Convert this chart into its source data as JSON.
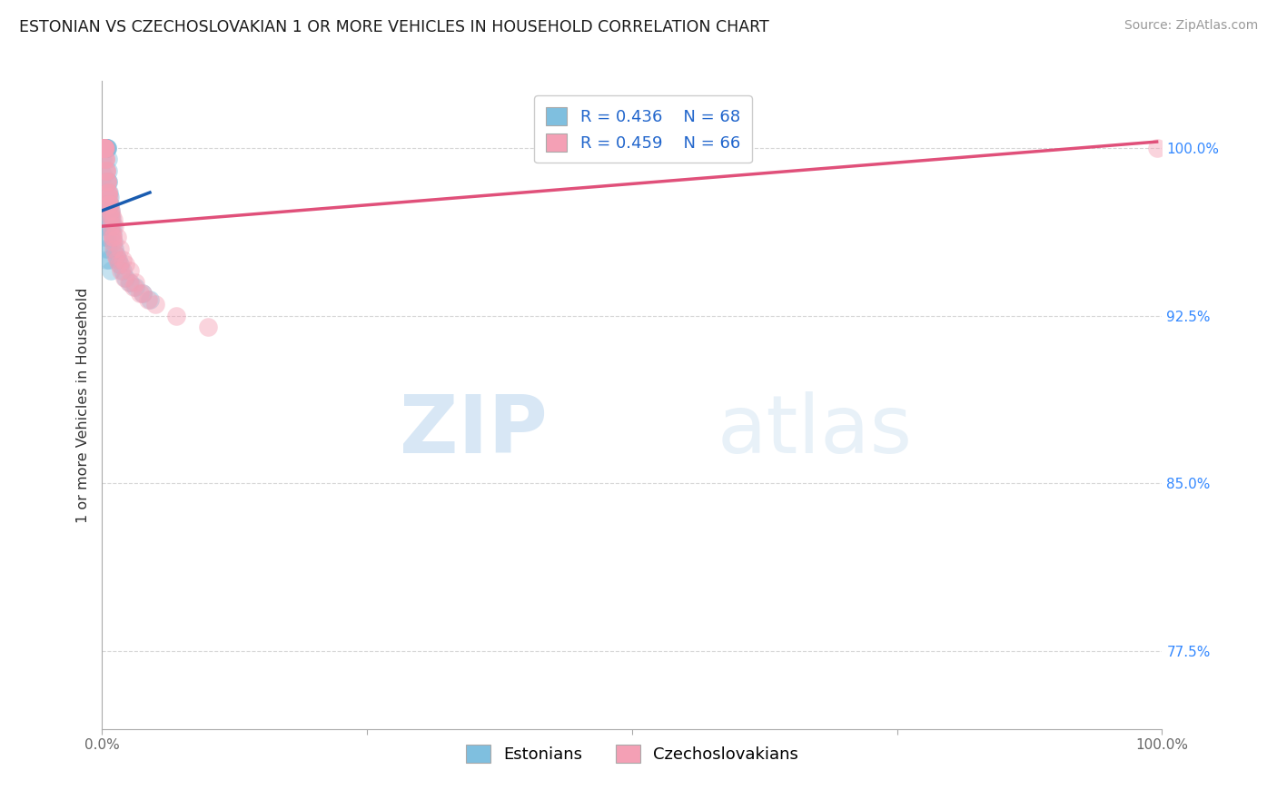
{
  "title": "ESTONIAN VS CZECHOSLOVAKIAN 1 OR MORE VEHICLES IN HOUSEHOLD CORRELATION CHART",
  "source": "Source: ZipAtlas.com",
  "ylabel": "1 or more Vehicles in Household",
  "xlim": [
    0.0,
    100.0
  ],
  "ylim": [
    74.0,
    103.0
  ],
  "yticks": [
    77.5,
    85.0,
    92.5,
    100.0
  ],
  "ytick_labels": [
    "77.5%",
    "85.0%",
    "92.5%",
    "100.0%"
  ],
  "xtick_labels": [
    "0.0%",
    "",
    "",
    "",
    "100.0%"
  ],
  "legend_labels": [
    "Estonians",
    "Czechoslovakians"
  ],
  "legend_r_blue": "R = 0.436",
  "legend_n_blue": "N = 68",
  "legend_r_pink": "R = 0.459",
  "legend_n_pink": "N = 66",
  "blue_color": "#7fbfdf",
  "pink_color": "#f4a0b5",
  "blue_line_color": "#1a5cb0",
  "pink_line_color": "#e0507a",
  "watermark_zip": "ZIP",
  "watermark_atlas": "atlas",
  "blue_x": [
    0.05,
    0.07,
    0.08,
    0.09,
    0.1,
    0.1,
    0.11,
    0.12,
    0.13,
    0.14,
    0.15,
    0.16,
    0.17,
    0.18,
    0.19,
    0.2,
    0.21,
    0.22,
    0.23,
    0.25,
    0.27,
    0.28,
    0.3,
    0.32,
    0.34,
    0.36,
    0.38,
    0.4,
    0.42,
    0.45,
    0.48,
    0.5,
    0.52,
    0.55,
    0.58,
    0.6,
    0.65,
    0.7,
    0.75,
    0.8,
    0.85,
    0.9,
    0.95,
    1.0,
    1.1,
    1.2,
    1.35,
    1.5,
    1.7,
    1.9,
    2.2,
    2.6,
    3.1,
    3.8,
    4.5,
    0.06,
    0.13,
    0.24,
    0.35,
    0.46,
    0.57,
    0.68,
    0.8,
    0.1,
    0.15,
    0.2,
    0.3,
    0.4
  ],
  "blue_y": [
    100.0,
    100.0,
    100.0,
    100.0,
    100.0,
    100.0,
    100.0,
    100.0,
    100.0,
    100.0,
    100.0,
    100.0,
    100.0,
    100.0,
    100.0,
    100.0,
    100.0,
    100.0,
    100.0,
    100.0,
    100.0,
    100.0,
    100.0,
    100.0,
    100.0,
    100.0,
    100.0,
    100.0,
    100.0,
    100.0,
    100.0,
    100.0,
    99.5,
    99.0,
    98.5,
    98.5,
    98.0,
    97.8,
    97.5,
    97.2,
    97.0,
    96.8,
    96.5,
    96.2,
    95.8,
    95.5,
    95.2,
    95.0,
    94.8,
    94.5,
    94.2,
    94.0,
    93.8,
    93.5,
    93.2,
    99.5,
    98.8,
    97.5,
    96.5,
    96.0,
    95.5,
    95.0,
    94.5,
    97.0,
    96.5,
    96.0,
    95.5,
    95.0
  ],
  "pink_x": [
    0.05,
    0.07,
    0.09,
    0.1,
    0.12,
    0.14,
    0.16,
    0.18,
    0.2,
    0.22,
    0.25,
    0.28,
    0.3,
    0.33,
    0.36,
    0.4,
    0.44,
    0.48,
    0.52,
    0.56,
    0.6,
    0.65,
    0.7,
    0.75,
    0.8,
    0.85,
    0.9,
    0.95,
    1.0,
    1.1,
    1.25,
    1.4,
    1.6,
    1.8,
    2.1,
    2.5,
    3.0,
    3.6,
    4.3,
    0.08,
    0.13,
    0.18,
    0.23,
    0.3,
    0.38,
    0.45,
    0.53,
    0.62,
    0.72,
    0.83,
    0.94,
    1.05,
    1.2,
    1.4,
    1.65,
    1.9,
    2.2,
    2.6,
    3.1,
    3.8,
    5.0,
    7.0,
    10.0,
    0.55,
    0.95,
    99.5
  ],
  "pink_y": [
    100.0,
    100.0,
    100.0,
    100.0,
    100.0,
    100.0,
    100.0,
    100.0,
    100.0,
    100.0,
    100.0,
    100.0,
    99.5,
    99.5,
    99.0,
    99.0,
    98.5,
    98.5,
    98.0,
    98.0,
    97.8,
    97.5,
    97.2,
    97.0,
    96.8,
    96.5,
    96.2,
    96.0,
    95.8,
    95.5,
    95.2,
    95.0,
    94.8,
    94.5,
    94.2,
    94.0,
    93.8,
    93.5,
    93.2,
    100.0,
    100.0,
    100.0,
    100.0,
    99.5,
    99.0,
    98.5,
    98.0,
    97.8,
    97.5,
    97.2,
    97.0,
    96.8,
    96.5,
    96.0,
    95.5,
    95.0,
    94.8,
    94.5,
    94.0,
    93.5,
    93.0,
    92.5,
    92.0,
    97.5,
    96.0,
    100.0
  ],
  "blue_trend_x": [
    0.05,
    4.5
  ],
  "blue_trend_y_intercept": 97.2,
  "blue_trend_slope": 0.18,
  "pink_trend_x": [
    0.05,
    99.5
  ],
  "pink_trend_y_intercept": 96.5,
  "pink_trend_slope": 0.038
}
